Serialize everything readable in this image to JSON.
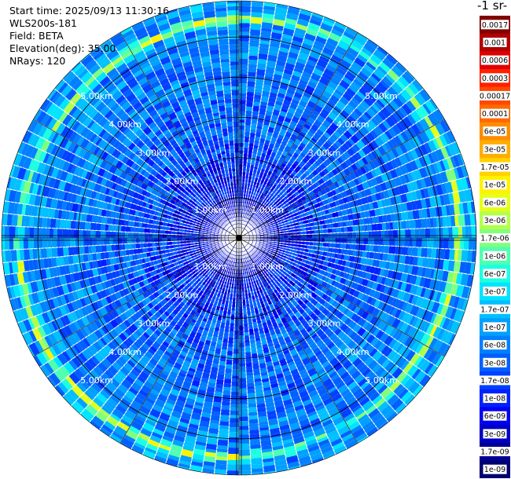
{
  "header": {
    "start_time": "Start time: 2025/09/13 11:30:16",
    "instrument": "WLS200s-181",
    "field": "Field: BETA",
    "elevation": "Elevation(deg): 35.00",
    "nrays": "NRays: 120"
  },
  "colorbar": {
    "units_label": "-1 sr-",
    "labels": [
      "0.0017",
      "0.001",
      "0.0006",
      "0.0003",
      "0.00017",
      "0.0001",
      "6e-05",
      "3e-05",
      "1.7e-05",
      "1e-05",
      "6e-06",
      "3e-06",
      "1.7e-06",
      "1e-06",
      "6e-07",
      "3e-07",
      "1.7e-07",
      "1e-07",
      "6e-08",
      "3e-08",
      "1.7e-08",
      "1e-08",
      "6e-09",
      "3e-09",
      "1.7e-09",
      "1e-09"
    ],
    "colors": [
      "#800000",
      "#b00000",
      "#e00000",
      "#ff2000",
      "#ff4800",
      "#ff6a00",
      "#ff8c00",
      "#ffae00",
      "#ffd200",
      "#fff200",
      "#e6ff1a",
      "#b4ff4b",
      "#82ff7d",
      "#50ffaf",
      "#1effe1",
      "#00e4ff",
      "#00c0ff",
      "#00a0ff",
      "#0080ff",
      "#0060ff",
      "#0040ff",
      "#0020ff",
      "#0000f0",
      "#0000c4",
      "#000096",
      "#000070"
    ]
  },
  "chart_data": {
    "type": "heatmap",
    "projection": "polar-ppi",
    "nrays": 120,
    "range_rings_km": [
      1,
      2,
      3,
      4,
      5
    ],
    "ring_labels": [
      "1.00km",
      "2.00km",
      "3.00km",
      "4.00km",
      "5.00km"
    ],
    "max_range_km": 5.9,
    "field": "BETA",
    "elevation_deg": 35.0,
    "colorscale": "log"
  }
}
